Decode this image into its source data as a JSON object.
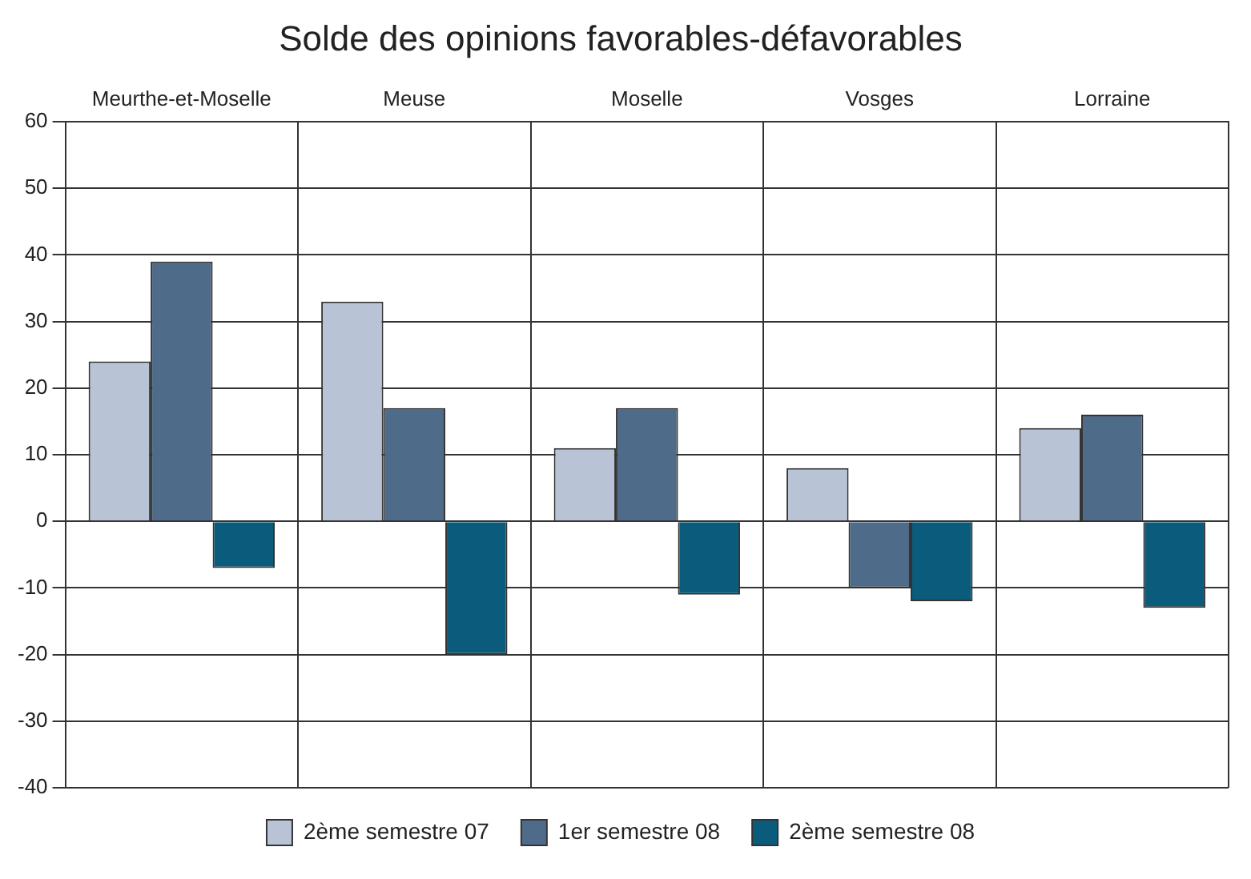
{
  "chart_data": {
    "type": "bar",
    "title": "Solde des opinions favorables-défavorables",
    "categories": [
      "Meurthe-et-Moselle",
      "Meuse",
      "Moselle",
      "Vosges",
      "Lorraine"
    ],
    "series": [
      {
        "name": "2ème semestre 07",
        "color": "#b8c3d5",
        "values": [
          24,
          33,
          11,
          8,
          14
        ]
      },
      {
        "name": "1er semestre 08",
        "color": "#4f6b8a",
        "values": [
          39,
          17,
          17,
          -10,
          16
        ]
      },
      {
        "name": "2ème semestre 08",
        "color": "#0b5c7c",
        "values": [
          -7,
          -20,
          -11,
          -12,
          -13
        ]
      }
    ],
    "ylim": [
      -40,
      60
    ],
    "yticks": [
      -40,
      -30,
      -20,
      -10,
      0,
      10,
      20,
      30,
      40,
      50,
      60
    ],
    "grid": true,
    "legend": "bottom"
  }
}
